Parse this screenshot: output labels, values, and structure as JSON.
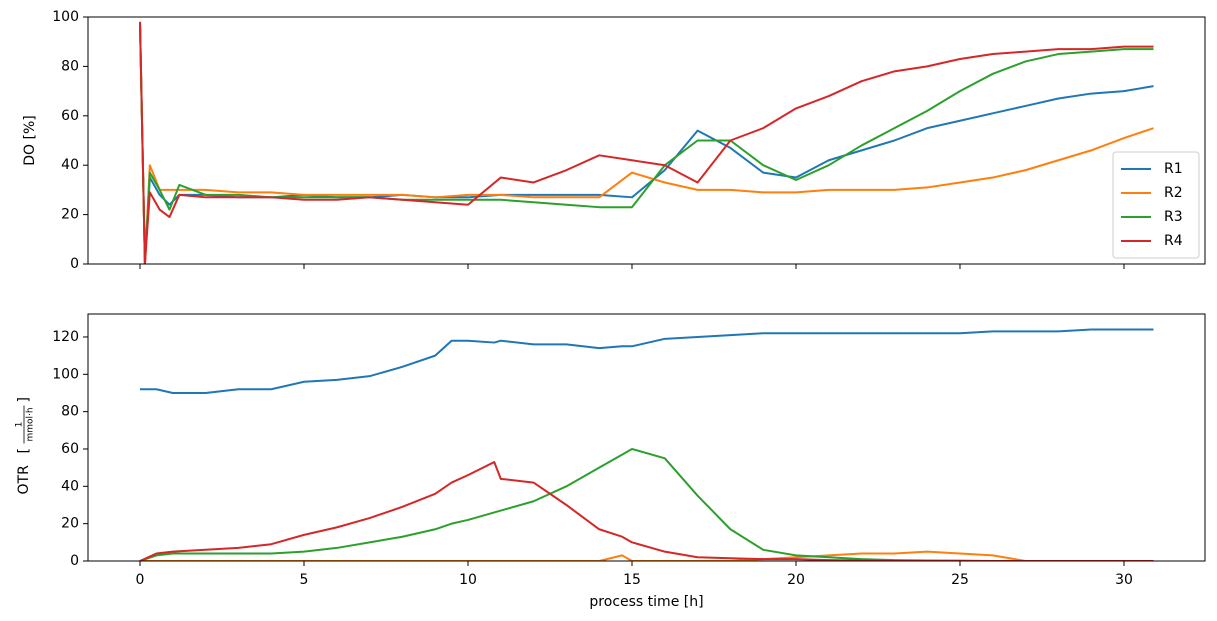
{
  "chart_data": [
    {
      "type": "line",
      "ylabel": "DO   [%]",
      "legend": "lower right",
      "show_xtick_labels": false,
      "x": [
        0,
        0.15,
        0.3,
        0.6,
        0.9,
        1.2,
        2,
        3,
        4,
        5,
        6,
        7,
        8,
        9,
        10,
        11,
        12,
        13,
        14,
        15,
        16,
        17,
        18,
        19,
        20,
        21,
        22,
        23,
        24,
        25,
        26,
        27,
        28,
        29,
        30,
        30.9
      ],
      "xlim": [
        -1.585,
        32.47
      ],
      "xticks": [
        0,
        5,
        10,
        15,
        20,
        25,
        30
      ],
      "ylim": [
        0,
        100
      ],
      "yticks": [
        0,
        20,
        40,
        60,
        80,
        100
      ],
      "series": [
        {
          "name": "R1",
          "color": "#1f77b4",
          "values": [
            98,
            0,
            35,
            28,
            24,
            28,
            28,
            27,
            27,
            28,
            27,
            27,
            28,
            27,
            27,
            28,
            28,
            28,
            28,
            27,
            38,
            54,
            47,
            37,
            35,
            42,
            46,
            50,
            55,
            58,
            61,
            64,
            67,
            69,
            70,
            72
          ]
        },
        {
          "name": "R2",
          "color": "#ff7f0e",
          "values": [
            98,
            0,
            40,
            30,
            30,
            30,
            30,
            29,
            29,
            28,
            28,
            28,
            28,
            27,
            28,
            28,
            27,
            27,
            27,
            37,
            33,
            30,
            30,
            29,
            29,
            30,
            30,
            30,
            31,
            33,
            35,
            38,
            42,
            46,
            51,
            55
          ]
        },
        {
          "name": "R3",
          "color": "#2ca02c",
          "values": [
            98,
            0,
            37,
            30,
            22,
            32,
            28,
            28,
            27,
            27,
            27,
            27,
            26,
            26,
            26,
            26,
            25,
            24,
            23,
            23,
            40,
            50,
            50,
            40,
            34,
            40,
            48,
            55,
            62,
            70,
            77,
            82,
            85,
            86,
            87,
            87
          ]
        },
        {
          "name": "R4",
          "color": "#d62728",
          "values": [
            98,
            0,
            29,
            22,
            19,
            28,
            27,
            27,
            27,
            26,
            26,
            27,
            26,
            25,
            24,
            35,
            33,
            38,
            44,
            42,
            40,
            33,
            50,
            55,
            63,
            68,
            74,
            78,
            80,
            83,
            85,
            86,
            87,
            87,
            88,
            88
          ]
        }
      ]
    },
    {
      "type": "line",
      "ylabel": "OTR",
      "ylabel_unit": [
        "[",
        "1",
        "mmol·h",
        "]"
      ],
      "xlabel": "process time   [h]",
      "x": [
        0,
        0.5,
        1,
        2,
        3,
        4,
        5,
        6,
        7,
        8,
        9,
        9.5,
        10,
        10.8,
        11,
        12,
        13,
        14,
        14.7,
        15,
        16,
        17,
        18,
        19,
        20,
        21,
        22,
        23,
        24,
        25,
        26,
        27,
        28,
        29,
        30,
        30.9
      ],
      "xlim": [
        -1.585,
        32.47
      ],
      "xticks": [
        0,
        5,
        10,
        15,
        20,
        25,
        30
      ],
      "ylim": [
        0,
        132.3
      ],
      "yticks": [
        0,
        20,
        40,
        60,
        80,
        100,
        120
      ],
      "series": [
        {
          "name": "R1",
          "color": "#1f77b4",
          "values": [
            92,
            92,
            90,
            90,
            92,
            92,
            96,
            97,
            99,
            104,
            110,
            118,
            118,
            117,
            118,
            116,
            116,
            114,
            115,
            115,
            119,
            120,
            121,
            122,
            122,
            122,
            122,
            122,
            122,
            122,
            123,
            123,
            123,
            124,
            124,
            124
          ]
        },
        {
          "name": "R2",
          "color": "#ff7f0e",
          "values": [
            0,
            0,
            0,
            0,
            0,
            0,
            0,
            0,
            0,
            0,
            0,
            0,
            0,
            0,
            0,
            0,
            0,
            0,
            3,
            0,
            0,
            0,
            0,
            1,
            2,
            3,
            4,
            4,
            5,
            4,
            3,
            0,
            0,
            0,
            0,
            0
          ]
        },
        {
          "name": "R3",
          "color": "#2ca02c",
          "values": [
            0,
            3,
            4,
            4,
            4,
            4,
            5,
            7,
            10,
            13,
            17,
            20,
            22,
            26,
            27,
            32,
            40,
            50,
            57,
            60,
            55,
            35,
            17,
            6,
            3,
            2,
            1,
            0.5,
            0.3,
            0.2,
            0,
            0,
            0,
            0,
            0,
            0
          ]
        },
        {
          "name": "R4",
          "color": "#d62728",
          "values": [
            0,
            4,
            5,
            6,
            7,
            9,
            14,
            18,
            23,
            29,
            36,
            42,
            46,
            53,
            44,
            42,
            30,
            17,
            13,
            10,
            5,
            2,
            1.5,
            1,
            1,
            0.5,
            0.3,
            0,
            0,
            0,
            0,
            0,
            0,
            0,
            0,
            0
          ]
        }
      ]
    }
  ]
}
